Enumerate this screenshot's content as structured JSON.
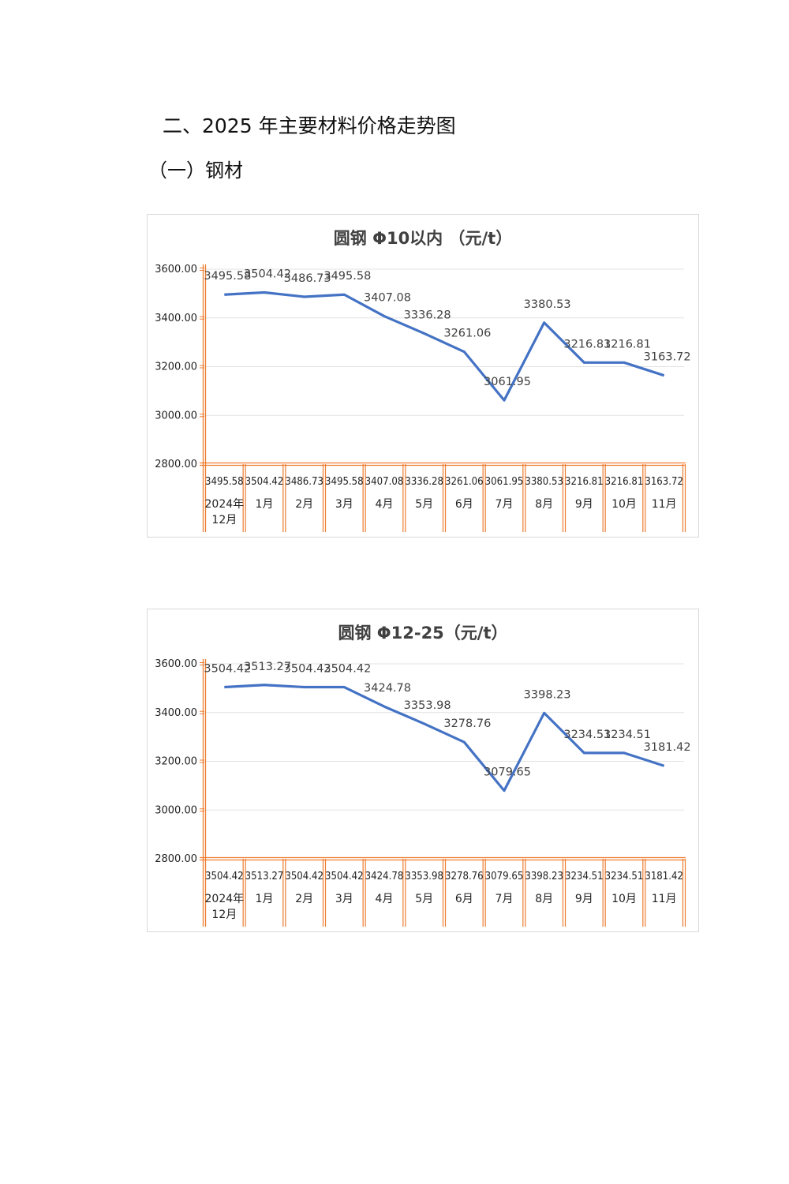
{
  "heading": "二、2025 年主要材料价格走势图",
  "subheading": "（一）钢材",
  "chart_data": [
    {
      "type": "line",
      "title": "圆钢 Φ10以内 （元/t）",
      "categories": [
        "2024年|12月",
        "1月",
        "2月",
        "3月",
        "4月",
        "5月",
        "6月",
        "7月",
        "8月",
        "9月",
        "10月",
        "11月"
      ],
      "values": [
        3495.58,
        3504.42,
        3486.73,
        3495.58,
        3407.08,
        3336.28,
        3261.06,
        3061.95,
        3380.53,
        3216.81,
        3216.81,
        3163.72
      ],
      "labels": [
        "3495.58",
        "3504.42",
        "3486.73",
        "3495.58",
        "3407.08",
        "3336.28",
        "3261.06",
        "3061.95",
        "3380.53",
        "3216.81",
        "3216.81",
        "3163.72"
      ],
      "yticks": [
        "3600.00",
        "3400.00",
        "3200.00",
        "3000.00",
        "2800.00"
      ],
      "ylim": [
        2800,
        3600
      ],
      "grid": true,
      "data_table": true,
      "line_color": "#4472c4",
      "table_color": "#ed7d31"
    },
    {
      "type": "line",
      "title": "圆钢 Φ12-25（元/t）",
      "categories": [
        "2024年|12月",
        "1月",
        "2月",
        "3月",
        "4月",
        "5月",
        "6月",
        "7月",
        "8月",
        "9月",
        "10月",
        "11月"
      ],
      "values": [
        3504.42,
        3513.27,
        3504.42,
        3504.42,
        3424.78,
        3353.98,
        3278.76,
        3079.65,
        3398.23,
        3234.51,
        3234.51,
        3181.42
      ],
      "labels": [
        "3504.42",
        "3513.27",
        "3504.42",
        "3504.42",
        "3424.78",
        "3353.98",
        "3278.76",
        "3079.65",
        "3398.23",
        "3234.51",
        "3234.51",
        "3181.42"
      ],
      "yticks": [
        "3600.00",
        "3400.00",
        "3200.00",
        "3000.00",
        "2800.00"
      ],
      "ylim": [
        2800,
        3600
      ],
      "grid": true,
      "data_table": true,
      "line_color": "#4472c4",
      "table_color": "#ed7d31"
    }
  ]
}
